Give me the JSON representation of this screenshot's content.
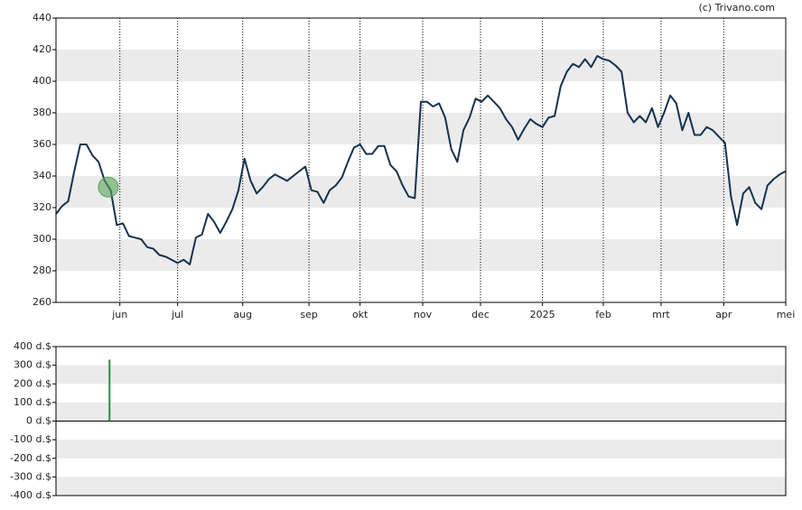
{
  "chart_data": [
    {
      "type": "line",
      "credit": "(c) Trivano.com",
      "color": "#15324f",
      "values": [
        316,
        321,
        324,
        343,
        360,
        360,
        353,
        349,
        337,
        331,
        309,
        310,
        302,
        301,
        300,
        295,
        294,
        290,
        289,
        287,
        285,
        287,
        284,
        301,
        303,
        316,
        311,
        304,
        311,
        319,
        331,
        351,
        337,
        329,
        333,
        338,
        341,
        339,
        337,
        340,
        343,
        346,
        331,
        330,
        323,
        331,
        334,
        339,
        349,
        358,
        360,
        354,
        354,
        359,
        359,
        347,
        343,
        334,
        327,
        326,
        387,
        387,
        384,
        386,
        377,
        357,
        349,
        369,
        377,
        389,
        387,
        391,
        387,
        383,
        376,
        371,
        363,
        370,
        376,
        373,
        371,
        377,
        378,
        397,
        406,
        411,
        409,
        414,
        409,
        416,
        414,
        413,
        410,
        406,
        380,
        374,
        378,
        374,
        383,
        371,
        380,
        391,
        386,
        369,
        380,
        366,
        366,
        371,
        369,
        365,
        361,
        327,
        309,
        329,
        333,
        323,
        319,
        334,
        338,
        341,
        343
      ],
      "xlim": [
        0,
        120
      ],
      "xticks": [
        {
          "value": 10.5,
          "label": "jun"
        },
        {
          "value": 20,
          "label": "jul"
        },
        {
          "value": 30.7,
          "label": "aug"
        },
        {
          "value": 41.6,
          "label": "sep"
        },
        {
          "value": 50,
          "label": "okt"
        },
        {
          "value": 60.3,
          "label": "nov"
        },
        {
          "value": 69.8,
          "label": "dec"
        },
        {
          "value": 80,
          "label": "2025"
        },
        {
          "value": 90,
          "label": "feb"
        },
        {
          "value": 99.5,
          "label": "mrt"
        },
        {
          "value": 109.8,
          "label": "apr"
        },
        {
          "value": 120,
          "label": "mei"
        }
      ],
      "ylim": [
        260,
        440
      ],
      "yticks": [
        260,
        280,
        300,
        320,
        340,
        360,
        380,
        400,
        420,
        440
      ],
      "marker": {
        "x": 8.6,
        "value": 333,
        "color": "#5aa55a"
      }
    },
    {
      "type": "bar",
      "color": "#2e8b3e",
      "x": [
        8.8
      ],
      "values": [
        330
      ],
      "xlim": [
        0,
        120
      ],
      "ylim": [
        -400,
        400
      ],
      "yticks": [
        {
          "value": -400,
          "label": "-400 d.$"
        },
        {
          "value": -300,
          "label": "-300 d.$"
        },
        {
          "value": -200,
          "label": "-200 d.$"
        },
        {
          "value": -100,
          "label": "-100 d.$"
        },
        {
          "value": 0,
          "label": "0 d.$"
        },
        {
          "value": 100,
          "label": "100 d.$"
        },
        {
          "value": 200,
          "label": "200 d.$"
        },
        {
          "value": 300,
          "label": "300 d.$"
        },
        {
          "value": 400,
          "label": "400 d.$"
        }
      ]
    }
  ]
}
